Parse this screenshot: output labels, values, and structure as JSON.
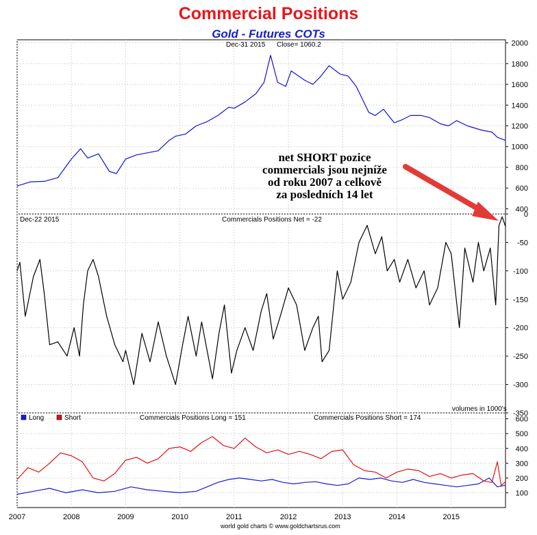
{
  "title": "Commercial Positions",
  "subtitle": "Gold - Futures COTs",
  "colors": {
    "title": "#e8161b",
    "subtitle": "#1520c8",
    "price": "#0a12d8",
    "net": "#000000",
    "long": "#1a1ad8",
    "short": "#e01010",
    "arrow": "#e23b36"
  },
  "annotation": {
    "lines": [
      "net SHORT pozice",
      "commercials jsou nejníže",
      "od roku 2007 a celkově",
      "za posledních 14 let"
    ],
    "arrow_icon": "red-arrow-icon"
  },
  "footer": "world gold charts © www.goldchartsrus.com",
  "chart_data": [
    {
      "type": "line",
      "panel": "price",
      "header_left": "Dec-31 2015",
      "header_close": "Close= 1060.2",
      "y_ticks": [
        400,
        600,
        800,
        1000,
        1200,
        1400,
        1600,
        1800,
        2000
      ],
      "ylim": [
        350,
        2030
      ],
      "series": [
        {
          "x": [
            2007.0,
            2007.25,
            2007.5,
            2007.75,
            2008.0,
            2008.17,
            2008.3,
            2008.5,
            2008.7,
            2008.83,
            2009.0,
            2009.2,
            2009.4,
            2009.6,
            2009.8,
            2009.92,
            2010.1,
            2010.3,
            2010.5,
            2010.7,
            2010.9,
            2011.0,
            2011.2,
            2011.4,
            2011.55,
            2011.67,
            2011.8,
            2011.95,
            2012.05,
            2012.3,
            2012.45,
            2012.6,
            2012.75,
            2012.95,
            2013.1,
            2013.25,
            2013.48,
            2013.6,
            2013.75,
            2013.95,
            2014.1,
            2014.25,
            2014.45,
            2014.6,
            2014.8,
            2014.95,
            2015.1,
            2015.3,
            2015.55,
            2015.75,
            2015.85,
            2016.0
          ],
          "y": [
            620,
            660,
            665,
            700,
            880,
            980,
            890,
            930,
            760,
            740,
            880,
            920,
            940,
            960,
            1060,
            1100,
            1120,
            1200,
            1240,
            1300,
            1380,
            1370,
            1430,
            1510,
            1620,
            1880,
            1620,
            1580,
            1730,
            1640,
            1600,
            1680,
            1780,
            1700,
            1680,
            1580,
            1330,
            1300,
            1360,
            1230,
            1260,
            1300,
            1300,
            1280,
            1220,
            1200,
            1250,
            1200,
            1160,
            1140,
            1090,
            1060
          ]
        }
      ]
    },
    {
      "type": "line",
      "panel": "net",
      "header_left": "Dec-22 2015",
      "header_center": "Commercials Positions Net = -22",
      "y_ticks": [
        0,
        -50,
        -100,
        -150,
        -200,
        -250,
        -300,
        -350
      ],
      "ylim": [
        -350,
        0
      ],
      "note": "volumes in 1000's",
      "series": [
        {
          "x": [
            2007.0,
            2007.05,
            2007.15,
            2007.3,
            2007.42,
            2007.5,
            2007.6,
            2007.75,
            2007.92,
            2008.05,
            2008.15,
            2008.22,
            2008.3,
            2008.4,
            2008.5,
            2008.65,
            2008.8,
            2008.95,
            2009.0,
            2009.15,
            2009.3,
            2009.45,
            2009.6,
            2009.75,
            2009.92,
            2010.05,
            2010.15,
            2010.3,
            2010.4,
            2010.52,
            2010.6,
            2010.72,
            2010.82,
            2010.95,
            2011.05,
            2011.2,
            2011.35,
            2011.5,
            2011.6,
            2011.72,
            2011.85,
            2012.0,
            2012.15,
            2012.3,
            2012.45,
            2012.55,
            2012.62,
            2012.75,
            2012.9,
            2013.0,
            2013.15,
            2013.3,
            2013.45,
            2013.6,
            2013.72,
            2013.82,
            2013.95,
            2014.05,
            2014.2,
            2014.35,
            2014.5,
            2014.6,
            2014.75,
            2014.9,
            2015.0,
            2015.15,
            2015.25,
            2015.4,
            2015.5,
            2015.6,
            2015.72,
            2015.82,
            2015.88,
            2015.94,
            2016.0
          ],
          "y": [
            -100,
            -85,
            -180,
            -110,
            -80,
            -140,
            -230,
            -225,
            -250,
            -200,
            -250,
            -160,
            -100,
            -80,
            -110,
            -180,
            -230,
            -260,
            -240,
            -300,
            -210,
            -260,
            -190,
            -250,
            -300,
            -230,
            -180,
            -250,
            -190,
            -250,
            -290,
            -210,
            -160,
            -280,
            -240,
            -200,
            -240,
            -170,
            -140,
            -220,
            -180,
            -130,
            -160,
            -240,
            -200,
            -180,
            -260,
            -240,
            -100,
            -150,
            -120,
            -50,
            -20,
            -70,
            -40,
            -100,
            -80,
            -120,
            -80,
            -130,
            -100,
            -160,
            -130,
            -50,
            -70,
            -200,
            -60,
            -120,
            -50,
            -100,
            -60,
            -160,
            -20,
            -5,
            -22
          ]
        }
      ]
    },
    {
      "type": "line",
      "panel": "long-short",
      "legend": [
        "Long",
        "Short"
      ],
      "header_long": "Commercials Positions Long = 151",
      "header_short": "Commercials Positions Short = 174",
      "y_ticks": [
        100,
        200,
        300,
        400,
        500,
        600
      ],
      "ylim": [
        0,
        640
      ],
      "x_ticks": [
        "2007",
        "2008",
        "2009",
        "2010",
        "2011",
        "2012",
        "2013",
        "2014",
        "2015"
      ],
      "x_tick_values": [
        2007,
        2008,
        2009,
        2010,
        2011,
        2012,
        2013,
        2014,
        2015
      ],
      "xlim": [
        2007.0,
        2016.0
      ],
      "series": [
        {
          "name": "Long",
          "x": [
            2007.0,
            2007.3,
            2007.6,
            2007.9,
            2008.2,
            2008.5,
            2008.8,
            2009.1,
            2009.4,
            2009.7,
            2010.0,
            2010.3,
            2010.5,
            2010.7,
            2010.9,
            2011.1,
            2011.3,
            2011.5,
            2011.7,
            2011.9,
            2012.1,
            2012.3,
            2012.5,
            2012.7,
            2012.9,
            2013.1,
            2013.3,
            2013.5,
            2013.7,
            2013.9,
            2014.1,
            2014.3,
            2014.5,
            2014.7,
            2014.9,
            2015.1,
            2015.3,
            2015.5,
            2015.7,
            2015.85,
            2016.0
          ],
          "y": [
            90,
            110,
            130,
            100,
            120,
            100,
            110,
            140,
            120,
            110,
            100,
            110,
            140,
            170,
            190,
            200,
            190,
            180,
            190,
            170,
            160,
            170,
            175,
            160,
            150,
            160,
            200,
            190,
            200,
            180,
            170,
            190,
            170,
            160,
            150,
            140,
            150,
            160,
            200,
            140,
            151
          ]
        },
        {
          "name": "Short",
          "x": [
            2007.0,
            2007.2,
            2007.4,
            2007.6,
            2007.8,
            2008.0,
            2008.2,
            2008.4,
            2008.6,
            2008.8,
            2009.0,
            2009.2,
            2009.4,
            2009.6,
            2009.8,
            2010.0,
            2010.2,
            2010.4,
            2010.6,
            2010.8,
            2011.0,
            2011.2,
            2011.4,
            2011.6,
            2011.8,
            2012.0,
            2012.2,
            2012.4,
            2012.6,
            2012.8,
            2013.0,
            2013.2,
            2013.4,
            2013.6,
            2013.8,
            2014.0,
            2014.2,
            2014.4,
            2014.6,
            2014.8,
            2015.0,
            2015.2,
            2015.4,
            2015.6,
            2015.75,
            2015.85,
            2015.92,
            2016.0
          ],
          "y": [
            190,
            270,
            240,
            300,
            370,
            350,
            310,
            200,
            180,
            230,
            320,
            340,
            300,
            330,
            400,
            410,
            380,
            440,
            480,
            420,
            400,
            470,
            410,
            370,
            390,
            360,
            380,
            360,
            330,
            380,
            390,
            290,
            250,
            240,
            200,
            240,
            260,
            250,
            210,
            230,
            200,
            220,
            230,
            180,
            170,
            310,
            150,
            174
          ]
        }
      ]
    }
  ]
}
